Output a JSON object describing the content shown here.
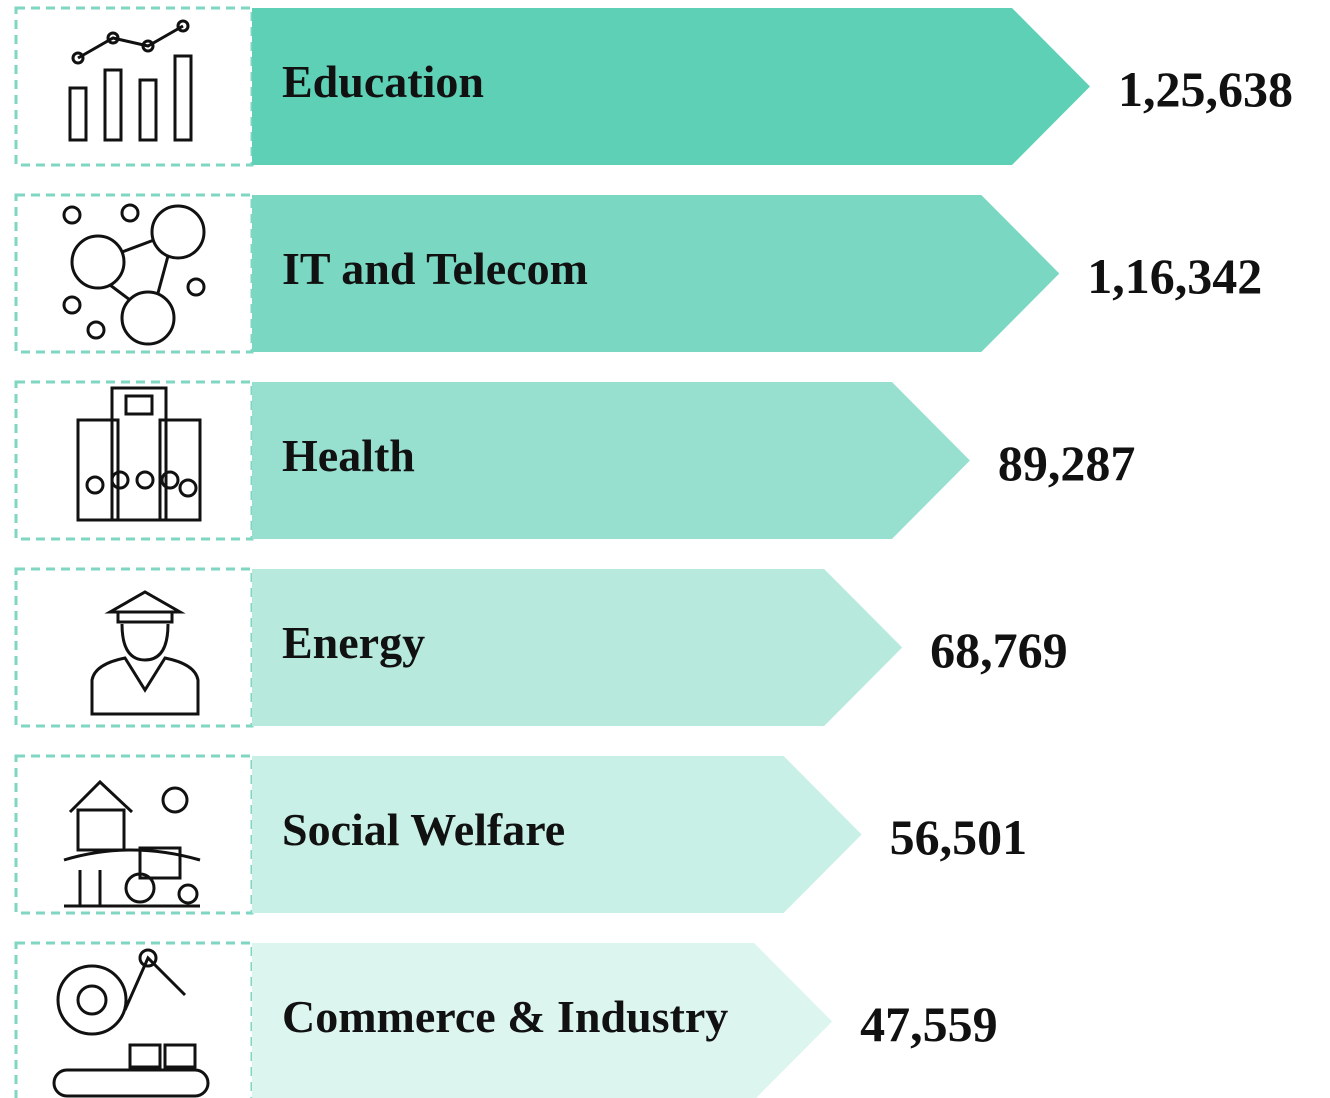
{
  "chart_data": {
    "type": "bar",
    "categories": [
      "Education",
      "IT and Telecom",
      "Health",
      "Energy",
      "Social Welfare",
      "Commerce & Industry"
    ],
    "values": [
      125638,
      116342,
      89287,
      68769,
      56501,
      47559
    ],
    "value_labels": [
      "1,25,638",
      "1,16,342",
      "89,287",
      "68,769",
      "56,501",
      "47,559"
    ],
    "colors": [
      "#5dd0b5",
      "#7ad8c2",
      "#97e0cf",
      "#b7eadd",
      "#c9f0e6",
      "#dcf5ef"
    ]
  }
}
